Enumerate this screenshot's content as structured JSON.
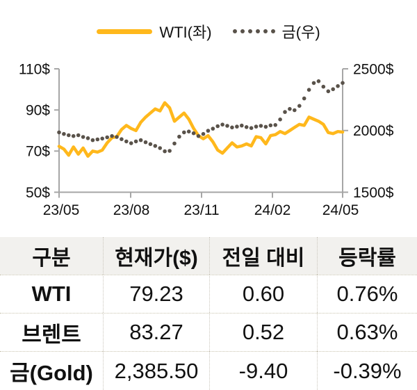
{
  "legend": {
    "wti_label": "WTI(좌)",
    "gold_label": "금(우)"
  },
  "chart_data": {
    "type": "line",
    "x_tick_labels": [
      "23/05",
      "23/08",
      "23/11",
      "24/02",
      "24/05"
    ],
    "left_axis": {
      "ticks": [
        "110$",
        "90$",
        "70$",
        "50$"
      ],
      "range": [
        50,
        110
      ]
    },
    "right_axis": {
      "ticks": [
        "2500$",
        "2000$",
        "1500$"
      ],
      "range": [
        1500,
        2500
      ]
    },
    "grid": false,
    "legend_position": "top",
    "series": [
      {
        "name": "WTI(좌)",
        "axis": "left",
        "style": "solid",
        "color": "#FFB81C",
        "values": [
          72.3,
          71.0,
          68.0,
          72.0,
          68.5,
          71.5,
          67.5,
          70.0,
          69.5,
          70.5,
          74.0,
          76.5,
          77.0,
          80.5,
          82.5,
          81.0,
          80.0,
          84.0,
          86.5,
          88.5,
          90.5,
          89.5,
          93.5,
          91.0,
          84.5,
          86.5,
          88.5,
          85.5,
          81.0,
          77.5,
          76.0,
          77.5,
          74.5,
          70.5,
          69.0,
          71.5,
          74.0,
          72.0,
          72.5,
          73.5,
          72.5,
          77.0,
          76.5,
          73.5,
          77.5,
          78.0,
          79.5,
          78.5,
          80.0,
          81.5,
          83.0,
          82.5,
          86.5,
          85.5,
          84.5,
          83.0,
          79.0,
          78.5,
          79.5,
          79.23
        ]
      },
      {
        "name": "금(우)",
        "axis": "right",
        "style": "dotted",
        "color": "#59524A",
        "values": [
          1985,
          1972,
          1962,
          1955,
          1962,
          1948,
          1938,
          1922,
          1928,
          1935,
          1945,
          1955,
          1948,
          1930,
          1912,
          1897,
          1912,
          1922,
          1905,
          1890,
          1875,
          1858,
          1832,
          1835,
          1895,
          1950,
          1985,
          1992,
          1978,
          1955,
          1972,
          1998,
          2015,
          2035,
          2048,
          2038,
          2025,
          2032,
          2040,
          2028,
          2020,
          2032,
          2038,
          2030,
          2042,
          2045,
          2090,
          2150,
          2175,
          2165,
          2200,
          2260,
          2330,
          2385,
          2400,
          2355,
          2318,
          2335,
          2360,
          2385.5
        ]
      }
    ]
  },
  "table": {
    "headers": [
      "구분",
      "현재가($)",
      "전일 대비",
      "등락률"
    ],
    "rows": [
      {
        "name": "WTI",
        "price": "79.23",
        "change": "0.60",
        "pct": "0.76%"
      },
      {
        "name": "브렌트",
        "price": "83.27",
        "change": "0.52",
        "pct": "0.63%"
      },
      {
        "name": "금(Gold)",
        "price": "2,385.50",
        "change": "-9.40",
        "pct": "-0.39%"
      }
    ]
  },
  "colors": {
    "wti_line": "#FFB81C",
    "gold_dot": "#59524A",
    "axis": "#A6A6A6",
    "table_header_bg": "#F2F1EE"
  }
}
